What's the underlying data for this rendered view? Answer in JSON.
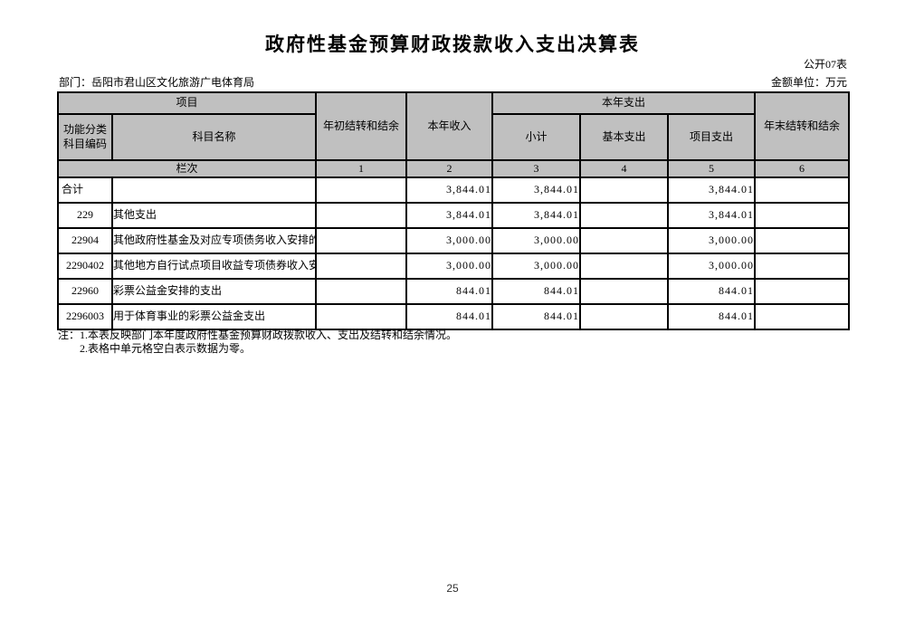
{
  "page": {
    "title": "政府性基金预算财政拨款收入支出决算表",
    "form_label": "公开07表",
    "department_label": "部门：岳阳市君山区文化旅游广电体育局",
    "unit_label": "金额单位：万元",
    "page_number": "25"
  },
  "colors": {
    "header_bg": "#c0c0c0",
    "border": "#000000",
    "text": "#000000"
  },
  "table": {
    "header": {
      "project": "项目",
      "code": "功能分类科目编码",
      "subject_name": "科目名称",
      "opening_balance": "年初结转和结余",
      "current_income": "本年收入",
      "current_expenditure": "本年支出",
      "subtotal": "小计",
      "basic_expenditure": "基本支出",
      "project_expenditure": "项目支出",
      "closing_balance": "年末结转和结余"
    },
    "column_index": {
      "label": "栏次",
      "numbers": [
        "1",
        "2",
        "3",
        "4",
        "5",
        "6"
      ]
    },
    "rows": [
      {
        "code": "合计",
        "name": "",
        "total": true,
        "values": [
          "",
          "3,844.01",
          "3,844.01",
          "",
          "3,844.01",
          ""
        ]
      },
      {
        "code": "229",
        "name": "其他支出",
        "total": false,
        "values": [
          "",
          "3,844.01",
          "3,844.01",
          "",
          "3,844.01",
          ""
        ]
      },
      {
        "code": "22904",
        "name": "其他政府性基金及对应专项债务收入安排的",
        "total": false,
        "values": [
          "",
          "3,000.00",
          "3,000.00",
          "",
          "3,000.00",
          ""
        ]
      },
      {
        "code": "2290402",
        "name": "其他地方自行试点项目收益专项债券收入安",
        "total": false,
        "values": [
          "",
          "3,000.00",
          "3,000.00",
          "",
          "3,000.00",
          ""
        ]
      },
      {
        "code": "22960",
        "name": "彩票公益金安排的支出",
        "total": false,
        "values": [
          "",
          "844.01",
          "844.01",
          "",
          "844.01",
          ""
        ]
      },
      {
        "code": "2296003",
        "name": "用于体育事业的彩票公益金支出",
        "total": false,
        "values": [
          "",
          "844.01",
          "844.01",
          "",
          "844.01",
          ""
        ]
      }
    ]
  },
  "notes": {
    "line1": "注：1.本表反映部门本年度政府性基金预算财政拨款收入、支出及结转和结余情况。",
    "line2": "2.表格中单元格空白表示数据为零。"
  }
}
